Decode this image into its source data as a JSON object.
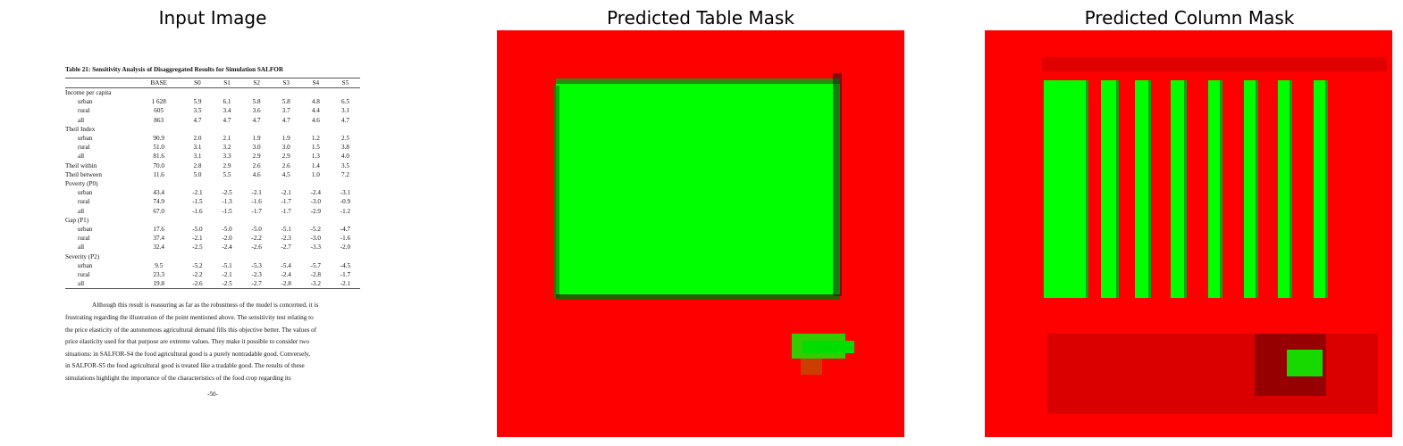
{
  "titles": {
    "input": "Input Image",
    "table_mask": "Predicted Table Mask",
    "column_mask": "Predicted Column Mask"
  },
  "document": {
    "table_title": "Table 21: Sensitivity Analysis of Disaggregated Results for Simulation SALFOR",
    "headers": [
      "",
      "BASE",
      "S0",
      "S1",
      "S2",
      "S3",
      "S4",
      "S5"
    ],
    "rows": [
      {
        "label": "Income per capita",
        "sub": false,
        "values": []
      },
      {
        "label": "urban",
        "sub": true,
        "values": [
          "1 628",
          "5.9",
          "6.1",
          "5.8",
          "5.8",
          "4.8",
          "6.5"
        ]
      },
      {
        "label": "rural",
        "sub": true,
        "values": [
          "605",
          "3.5",
          "3.4",
          "3.6",
          "3.7",
          "4.4",
          "3.1"
        ]
      },
      {
        "label": "all",
        "sub": true,
        "values": [
          "863",
          "4.7",
          "4.7",
          "4.7",
          "4.7",
          "4.6",
          "4.7"
        ]
      },
      {
        "label": "Theil Index",
        "sub": false,
        "values": []
      },
      {
        "label": "urban",
        "sub": true,
        "values": [
          "90.9",
          "2.0",
          "2.1",
          "1.9",
          "1.9",
          "1.2",
          "2.5"
        ]
      },
      {
        "label": "rural",
        "sub": true,
        "values": [
          "51.0",
          "3.1",
          "3.2",
          "3.0",
          "3.0",
          "1.5",
          "3.8"
        ]
      },
      {
        "label": "all",
        "sub": true,
        "values": [
          "81.6",
          "3.1",
          "3.3",
          "2.9",
          "2.9",
          "1.3",
          "4.0"
        ]
      },
      {
        "label": "Theil within",
        "sub": false,
        "values": [
          "70.0",
          "2.8",
          "2.9",
          "2.6",
          "2.6",
          "1.4",
          "3.5"
        ]
      },
      {
        "label": "Theil between",
        "sub": false,
        "values": [
          "11.6",
          "5.0",
          "5.5",
          "4.6",
          "4.5",
          "1.0",
          "7.2"
        ]
      },
      {
        "label": "Poverty (P0)",
        "sub": false,
        "values": []
      },
      {
        "label": "urban",
        "sub": true,
        "values": [
          "43.4",
          "-2.1",
          "-2.5",
          "-2.1",
          "-2.1",
          "-2.4",
          "-3.1"
        ]
      },
      {
        "label": "rural",
        "sub": true,
        "values": [
          "74.9",
          "-1.5",
          "-1.3",
          "-1.6",
          "-1.7",
          "-3.0",
          "-0.9"
        ]
      },
      {
        "label": "all",
        "sub": true,
        "values": [
          "67.0",
          "-1.6",
          "-1.5",
          "-1.7",
          "-1.7",
          "-2.9",
          "-1.2"
        ]
      },
      {
        "label": "Gap (P1)",
        "sub": false,
        "values": []
      },
      {
        "label": "urban",
        "sub": true,
        "values": [
          "17.6",
          "-5.0",
          "-5.0",
          "-5.0",
          "-5.1",
          "-5.2",
          "-4.7"
        ]
      },
      {
        "label": "rural",
        "sub": true,
        "values": [
          "37.4",
          "-2.1",
          "-2.0",
          "-2.2",
          "-2.3",
          "-3.0",
          "-1.6"
        ]
      },
      {
        "label": "all",
        "sub": true,
        "values": [
          "32.4",
          "-2.5",
          "-2.4",
          "-2.6",
          "-2.7",
          "-3.3",
          "-2.0"
        ]
      },
      {
        "label": "Severity (P2)",
        "sub": false,
        "values": []
      },
      {
        "label": "urban",
        "sub": true,
        "values": [
          "9.5",
          "-5.2",
          "-5.1",
          "-5.3",
          "-5.4",
          "-5.7",
          "-4.5"
        ]
      },
      {
        "label": "rural",
        "sub": true,
        "values": [
          "23.3",
          "-2.2",
          "-2.1",
          "-2.3",
          "-2.4",
          "-2.8",
          "-1.7"
        ]
      },
      {
        "label": "all",
        "sub": true,
        "values": [
          "19.8",
          "-2.6",
          "-2.5",
          "-2.7",
          "-2.8",
          "-3.2",
          "-2.1"
        ]
      }
    ],
    "paragraph_lines": [
      "Although this result is reassuring as far as the robustness of the model is concerned, it is",
      "frustrating regarding the illustration of the point mentioned above. The sensitivity test relating to",
      "the price elasticity of the autonomous agricultural demand fills this objective better. The values of",
      "price elasticity used for that purpose are extreme values. They make it possible to consider two",
      "situations: in SALFOR-S4 the food agricultural good is a purely nontradable good. Conversely,",
      "in SALFOR-S5 the food agricultural good is treated like a tradable good. The results of these",
      "simulations highlight the importance of the characteristics of the food crop regarding its"
    ],
    "page_number": "-50-"
  },
  "colors": {
    "background": "#ff0000",
    "predicted": "#00ff00",
    "edge": "#1a0a0a"
  }
}
